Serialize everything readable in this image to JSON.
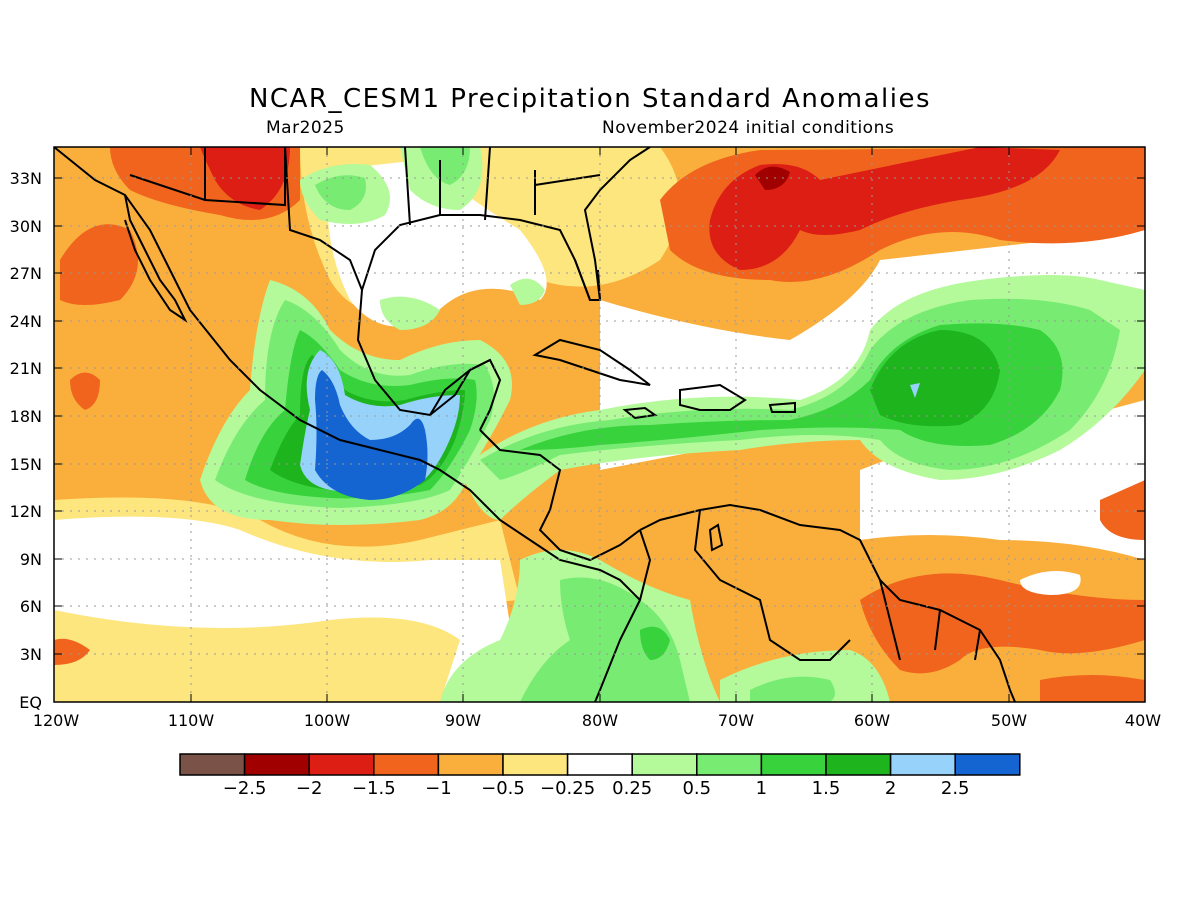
{
  "title": "NCAR_CESM1 Precipitation Standard Anomalies",
  "valid_month": "Mar2025",
  "initial_conditions": "November2024 initial conditions",
  "lat_ticks": [
    "33N",
    "30N",
    "27N",
    "24N",
    "21N",
    "18N",
    "15N",
    "12N",
    "9N",
    "6N",
    "3N",
    "EQ"
  ],
  "lon_ticks": [
    "120W",
    "110W",
    "100W",
    "90W",
    "80W",
    "70W",
    "60W",
    "50W",
    "40W"
  ],
  "colorbar": {
    "colors": [
      "#7a5248",
      "#a00000",
      "#dc1e14",
      "#f0641e",
      "#faaf3c",
      "#fde67d",
      "#ffffff",
      "#b4fa9b",
      "#78eb73",
      "#37d23c",
      "#1eb41e",
      "#96d2fa",
      "#1464d2"
    ],
    "labels": [
      "−2.5",
      "−2",
      "−1.5",
      "−1",
      "−0.5",
      "−0.25",
      "0.25",
      "0.5",
      "1",
      "1.5",
      "2",
      "2.5"
    ]
  },
  "colors": {
    "dry_strong": "#dc1e14",
    "dry_moderate": "#f0641e",
    "dry_light": "#faaf3c",
    "dry_weak": "#fde67d",
    "wet_weak": "#b4fa9b",
    "wet_light": "#78eb73",
    "wet_moderate": "#37d23c",
    "wet_strong": "#1eb41e",
    "wet_very": "#96d2fa",
    "wet_extreme": "#1464d2"
  }
}
